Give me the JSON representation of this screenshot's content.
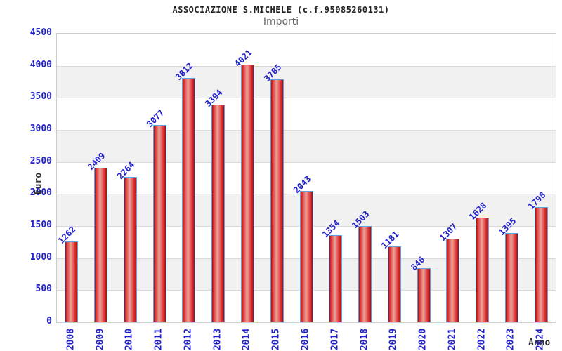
{
  "chart_data": {
    "type": "bar",
    "title": "ASSOCIAZIONE S.MICHELE (c.f.95085260131)",
    "subtitle": "Importi",
    "xlabel": "Anno",
    "ylabel": "Euro",
    "categories": [
      "2008",
      "2009",
      "2010",
      "2011",
      "2012",
      "2013",
      "2014",
      "2015",
      "2016",
      "2017",
      "2018",
      "2019",
      "2020",
      "2021",
      "2022",
      "2023",
      "2024"
    ],
    "values": [
      1262,
      2409,
      2264,
      3077,
      3812,
      3394,
      4021,
      3785,
      2043,
      1354,
      1503,
      1181,
      846,
      1307,
      1628,
      1395,
      1798
    ],
    "ylim": [
      0,
      4500
    ],
    "ytick_step": 500,
    "grid": true,
    "legend": "none",
    "colors": {
      "title": "#222222",
      "subtitle": "#666666",
      "axis_title": "#333333",
      "tick_label": "#2222cc",
      "value_label": "#2222cc",
      "bar_border": "#58a2e0",
      "bar_edge_dark": "#9c1010",
      "bar_red": "#e03030",
      "bar_center_light": "#eaa49c",
      "band_gray": "#f1f1f1",
      "band_white": "#ffffff",
      "gridline": "#d9d9d9",
      "plot_border": "#cccccc"
    }
  }
}
